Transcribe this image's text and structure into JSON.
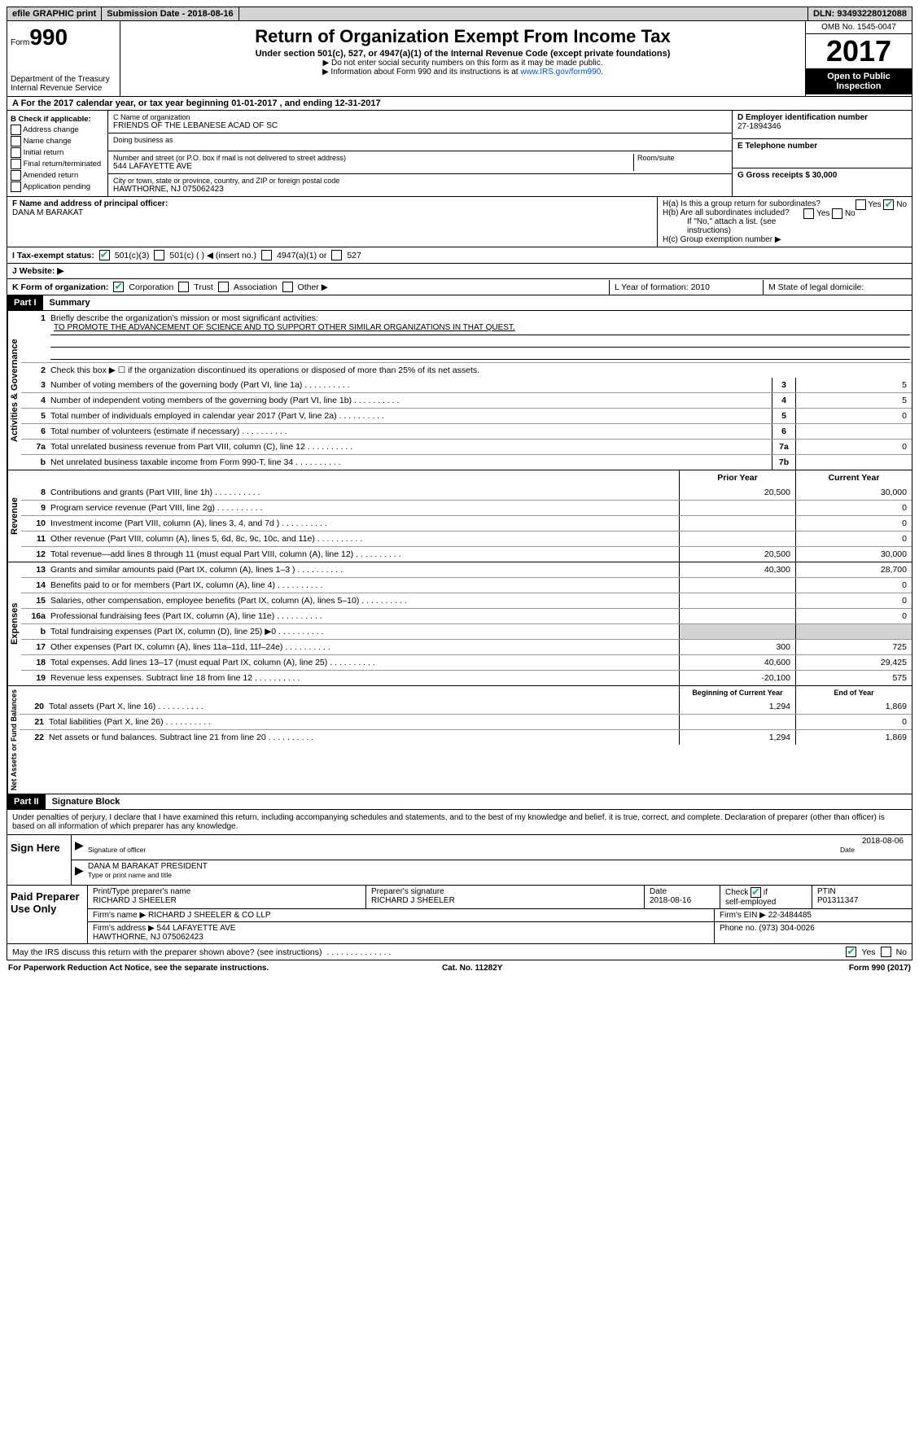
{
  "topbar": {
    "efile": "efile GRAPHIC print",
    "submission": "Submission Date - 2018-08-16",
    "dln": "DLN: 93493228012088"
  },
  "header": {
    "form_prefix": "Form",
    "form_number": "990",
    "dept": "Department of the Treasury\nInternal Revenue Service",
    "title": "Return of Organization Exempt From Income Tax",
    "subtitle": "Under section 501(c), 527, or 4947(a)(1) of the Internal Revenue Code (except private foundations)",
    "note1": "▶ Do not enter social security numbers on this form as it may be made public.",
    "note2_prefix": "▶ Information about Form 990 and its instructions is at ",
    "note2_link": "www.IRS.gov/form990",
    "omb": "OMB No. 1545-0047",
    "year": "2017",
    "open": "Open to Public Inspection"
  },
  "sectionA": {
    "text": "A For the 2017 calendar year, or tax year beginning 01-01-2017   , and ending 12-31-2017"
  },
  "boxB": {
    "title": "B Check if applicable:",
    "opts": [
      "Address change",
      "Name change",
      "Initial return",
      "Final return/terminated",
      "Amended return",
      "Application pending"
    ]
  },
  "boxC": {
    "name_label": "C Name of organization",
    "name": "FRIENDS OF THE LEBANESE ACAD OF SC",
    "dba_label": "Doing business as",
    "addr_label": "Number and street (or P.O. box if mail is not delivered to street address)",
    "room_label": "Room/suite",
    "addr": "544 LAFAYETTE AVE",
    "city_label": "City or town, state or province, country, and ZIP or foreign postal code",
    "city": "HAWTHORNE, NJ  075062423"
  },
  "boxD": {
    "label": "D Employer identification number",
    "value": "27-1894346"
  },
  "boxE": {
    "label": "E Telephone number"
  },
  "boxG": {
    "label": "G Gross receipts $ 30,000"
  },
  "boxF": {
    "label": "F  Name and address of principal officer:",
    "value": "DANA M BARAKAT"
  },
  "boxH": {
    "a": "H(a)  Is this a group return for subordinates?",
    "b": "H(b)  Are all subordinates included?",
    "b_note": "If \"No,\" attach a list. (see instructions)",
    "c": "H(c)  Group exemption number ▶"
  },
  "rowI": {
    "label": "I   Tax-exempt status:",
    "opts": [
      "501(c)(3)",
      "501(c) (  ) ◀ (insert no.)",
      "4947(a)(1) or",
      "527"
    ]
  },
  "rowJ": {
    "label": "J   Website: ▶"
  },
  "rowK": {
    "label": "K Form of organization:",
    "opts": [
      "Corporation",
      "Trust",
      "Association",
      "Other ▶"
    ],
    "L": "L Year of formation: 2010",
    "M": "M State of legal domicile:"
  },
  "part1": {
    "header": "Part I",
    "title": "Summary",
    "side1": "Activities & Governance",
    "line1_label": "Briefly describe the organization's mission or most significant activities:",
    "line1_text": "TO PROMOTE THE ADVANCEMENT OF SCIENCE AND TO SUPPORT OTHER SIMILAR ORGANIZATIONS IN THAT QUEST.",
    "line2": "Check this box ▶ ☐  if the organization discontinued its operations or disposed of more than 25% of its net assets.",
    "rows_gov": [
      {
        "n": "3",
        "t": "Number of voting members of the governing body (Part VI, line 1a)",
        "box": "3",
        "v": "5"
      },
      {
        "n": "4",
        "t": "Number of independent voting members of the governing body (Part VI, line 1b)",
        "box": "4",
        "v": "5"
      },
      {
        "n": "5",
        "t": "Total number of individuals employed in calendar year 2017 (Part V, line 2a)",
        "box": "5",
        "v": "0"
      },
      {
        "n": "6",
        "t": "Total number of volunteers (estimate if necessary)",
        "box": "6",
        "v": ""
      },
      {
        "n": "7a",
        "t": "Total unrelated business revenue from Part VIII, column (C), line 12",
        "box": "7a",
        "v": "0"
      },
      {
        "n": "b",
        "t": "Net unrelated business taxable income from Form 990-T, line 34",
        "box": "7b",
        "v": ""
      }
    ],
    "side2": "Revenue",
    "col_head1": "Prior Year",
    "col_head2": "Current Year",
    "rows_rev": [
      {
        "n": "8",
        "t": "Contributions and grants (Part VIII, line 1h)",
        "p": "20,500",
        "c": "30,000"
      },
      {
        "n": "9",
        "t": "Program service revenue (Part VIII, line 2g)",
        "p": "",
        "c": "0"
      },
      {
        "n": "10",
        "t": "Investment income (Part VIII, column (A), lines 3, 4, and 7d )",
        "p": "",
        "c": "0"
      },
      {
        "n": "11",
        "t": "Other revenue (Part VIII, column (A), lines 5, 6d, 8c, 9c, 10c, and 11e)",
        "p": "",
        "c": "0"
      },
      {
        "n": "12",
        "t": "Total revenue—add lines 8 through 11 (must equal Part VIII, column (A), line 12)",
        "p": "20,500",
        "c": "30,000"
      }
    ],
    "side3": "Expenses",
    "rows_exp": [
      {
        "n": "13",
        "t": "Grants and similar amounts paid (Part IX, column (A), lines 1–3 )",
        "p": "40,300",
        "c": "28,700"
      },
      {
        "n": "14",
        "t": "Benefits paid to or for members (Part IX, column (A), line 4)",
        "p": "",
        "c": "0"
      },
      {
        "n": "15",
        "t": "Salaries, other compensation, employee benefits (Part IX, column (A), lines 5–10)",
        "p": "",
        "c": "0"
      },
      {
        "n": "16a",
        "t": "Professional fundraising fees (Part IX, column (A), line 11e)",
        "p": "",
        "c": "0"
      },
      {
        "n": "b",
        "t": "Total fundraising expenses (Part IX, column (D), line 25) ▶0",
        "p": "shaded",
        "c": "shaded"
      },
      {
        "n": "17",
        "t": "Other expenses (Part IX, column (A), lines 11a–11d, 11f–24e)",
        "p": "300",
        "c": "725"
      },
      {
        "n": "18",
        "t": "Total expenses. Add lines 13–17 (must equal Part IX, column (A), line 25)",
        "p": "40,600",
        "c": "29,425"
      },
      {
        "n": "19",
        "t": "Revenue less expenses. Subtract line 18 from line 12",
        "p": "-20,100",
        "c": "575"
      }
    ],
    "side4": "Net Assets or Fund Balances",
    "col_head3": "Beginning of Current Year",
    "col_head4": "End of Year",
    "rows_net": [
      {
        "n": "20",
        "t": "Total assets (Part X, line 16)",
        "p": "1,294",
        "c": "1,869"
      },
      {
        "n": "21",
        "t": "Total liabilities (Part X, line 26)",
        "p": "",
        "c": "0"
      },
      {
        "n": "22",
        "t": "Net assets or fund balances. Subtract line 21 from line 20",
        "p": "1,294",
        "c": "1,869"
      }
    ]
  },
  "part2": {
    "header": "Part II",
    "title": "Signature Block",
    "perjury": "Under penalties of perjury, I declare that I have examined this return, including accompanying schedules and statements, and to the best of my knowledge and belief, it is true, correct, and complete. Declaration of preparer (other than officer) is based on all information of which preparer has any knowledge.",
    "sign_here": "Sign Here",
    "sig_officer": "Signature of officer",
    "sig_date": "2018-08-06",
    "date_label": "Date",
    "officer_name": "DANA M BARAKAT PRESIDENT",
    "type_label": "Type or print name and title",
    "paid": "Paid Preparer Use Only",
    "prep_name_label": "Print/Type preparer's name",
    "prep_name": "RICHARD J SHEELER",
    "prep_sig_label": "Preparer's signature",
    "prep_sig": "RICHARD J SHEELER",
    "prep_date_label": "Date",
    "prep_date": "2018-08-16",
    "self_emp": "Check ☑ if self-employed",
    "ptin_label": "PTIN",
    "ptin": "P01311347",
    "firm_name_label": "Firm's name    ▶",
    "firm_name": "RICHARD J SHEELER & CO LLP",
    "firm_ein": "Firm's EIN ▶ 22-3484485",
    "firm_addr_label": "Firm's address ▶",
    "firm_addr": "544 LAFAYETTE AVE\nHAWTHORNE, NJ  075062423",
    "phone": "Phone no. (973) 304-0026",
    "discuss": "May the IRS discuss this return with the preparer shown above? (see instructions)"
  },
  "footer": {
    "left": "For Paperwork Reduction Act Notice, see the separate instructions.",
    "mid": "Cat. No. 11282Y",
    "right": "Form 990 (2017)"
  }
}
